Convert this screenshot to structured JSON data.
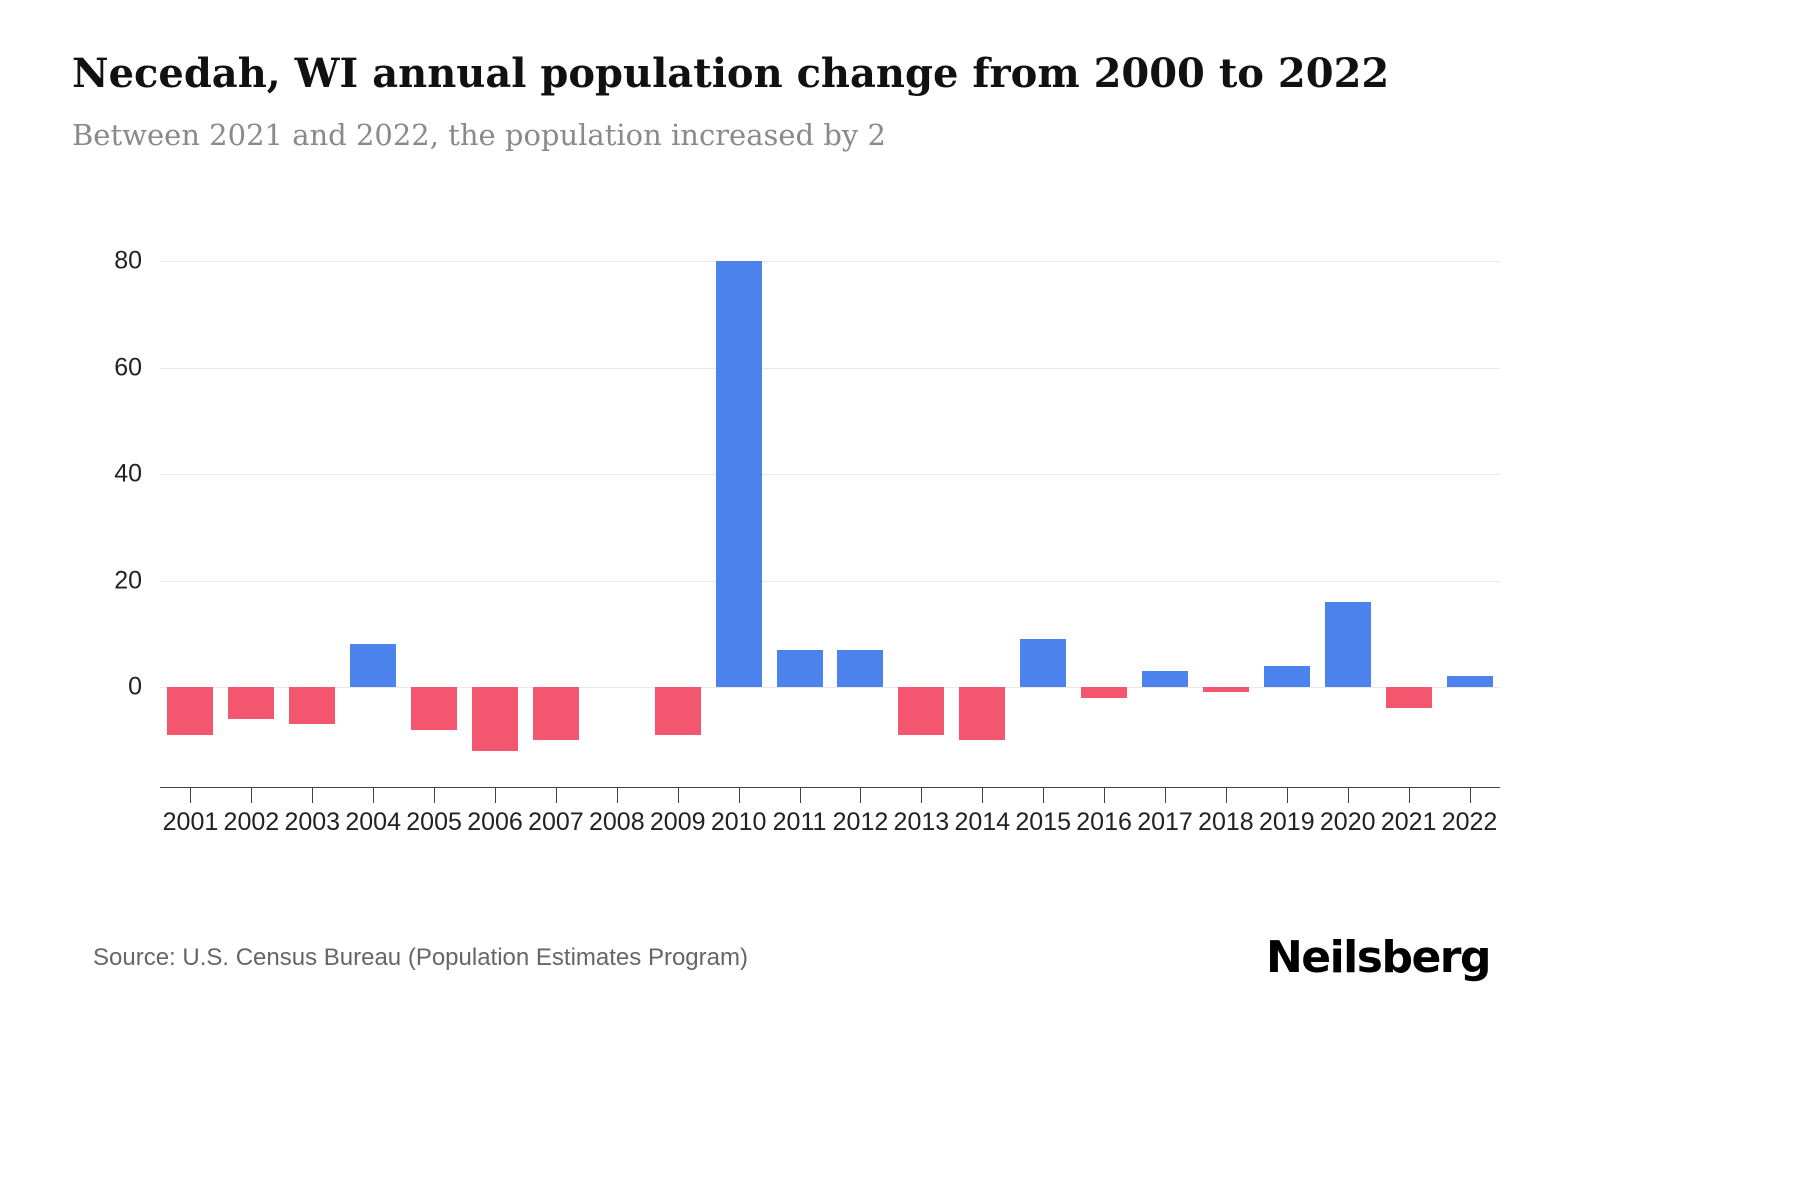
{
  "header": {
    "title": "Necedah, WI annual population change from 2000 to 2022",
    "subtitle": "Between 2021 and 2022, the population increased by 2"
  },
  "footer": {
    "source": "Source: U.S. Census Bureau (Population Estimates Program)",
    "brand": "Neilsberg"
  },
  "chart_data": {
    "type": "bar",
    "title": "Necedah, WI annual population change from 2000 to 2022",
    "subtitle": "Between 2021 and 2022, the population increased by 2",
    "categories": [
      "2001",
      "2002",
      "2003",
      "2004",
      "2005",
      "2006",
      "2007",
      "2008",
      "2009",
      "2010",
      "2011",
      "2012",
      "2013",
      "2014",
      "2015",
      "2016",
      "2017",
      "2018",
      "2019",
      "2020",
      "2021",
      "2022"
    ],
    "values": [
      -9,
      -6,
      -7,
      8,
      -8,
      -12,
      -10,
      0,
      -9,
      80,
      7,
      7,
      -9,
      -10,
      9,
      -2,
      3,
      -1,
      4,
      16,
      -4,
      2
    ],
    "xlabel": "",
    "ylabel": "",
    "yticks": [
      0,
      20,
      40,
      60,
      80
    ],
    "ylim": [
      -15,
      85
    ],
    "grid": "horizontal",
    "legend": "none",
    "positive_color": "#4C83EC",
    "negative_color": "#F4556F"
  }
}
